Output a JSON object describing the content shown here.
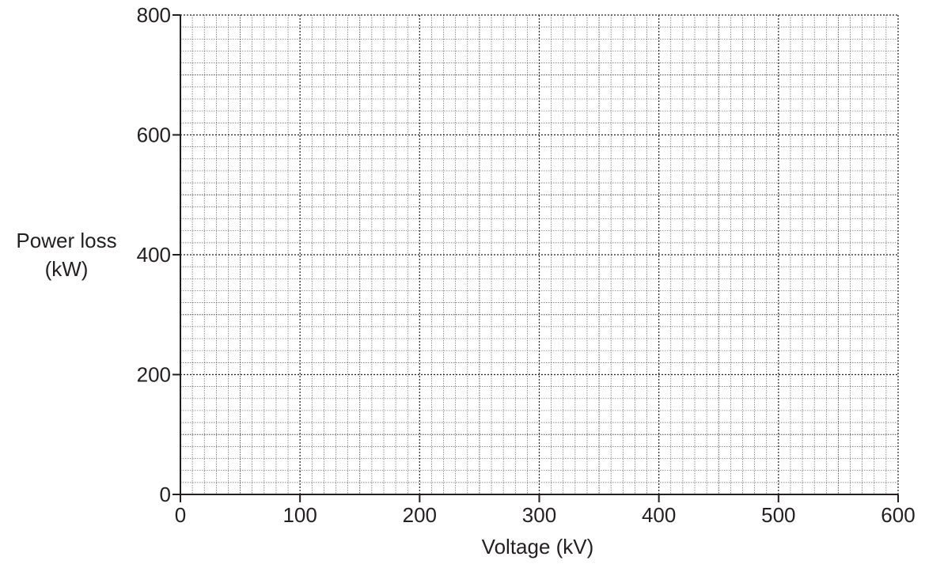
{
  "chart_data": {
    "type": "scatter",
    "title": "",
    "xlabel": "Voltage (kV)",
    "ylabel_lines": [
      "Power loss",
      "(kW)"
    ],
    "xlim": [
      0,
      600
    ],
    "ylim": [
      0,
      800
    ],
    "xticks": [
      0,
      100,
      200,
      300,
      400,
      500,
      600
    ],
    "yticks": [
      0,
      200,
      400,
      600,
      800
    ],
    "x_minor_step": 10,
    "y_minor_step": 20,
    "x_medium_step": 50,
    "y_medium_step": 100,
    "grid": true,
    "series": []
  },
  "colors": {
    "axis": "#231f20",
    "grid_major": "#231f20",
    "grid_minor": "#231f20"
  }
}
